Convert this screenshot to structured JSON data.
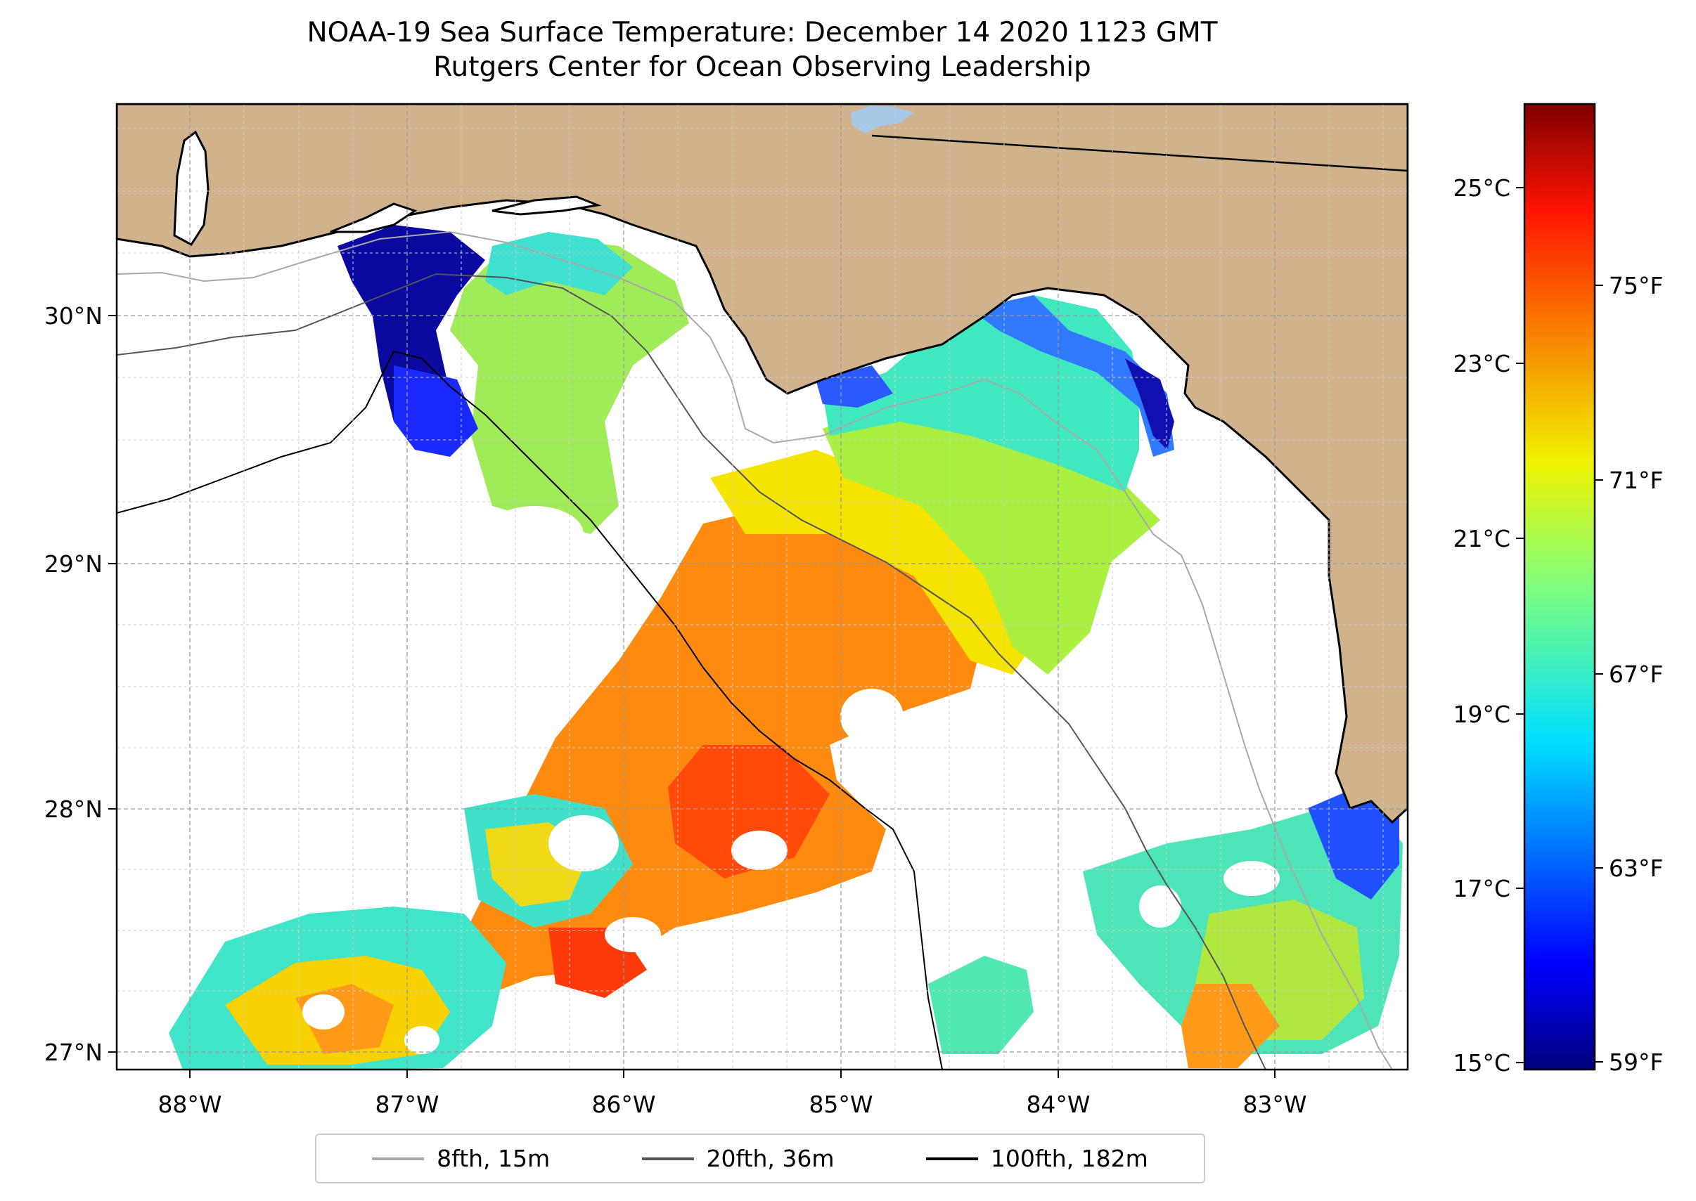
{
  "title": {
    "line1": "NOAA-19 Sea Surface Temperature: December 14 2020 1123 GMT",
    "line2": "Rutgers Center for Ocean Observing Leadership"
  },
  "map": {
    "region": "Northeastern Gulf of Mexico",
    "land_color": "#d0b28c",
    "lon_labels": [
      "88°W",
      "87°W",
      "86°W",
      "85°W",
      "84°W",
      "83°W"
    ],
    "lat_labels": [
      "27°N",
      "28°N",
      "29°N",
      "30°N"
    ]
  },
  "colorbar": {
    "celsius_labels": [
      "25°C",
      "23°C",
      "21°C",
      "19°C",
      "17°C",
      "15°C"
    ],
    "fahrenheit_labels": [
      "75°F",
      "71°F",
      "67°F",
      "63°F",
      "59°F"
    ],
    "range_c": [
      15,
      26
    ],
    "colormap": "jet"
  },
  "legend": {
    "items": [
      {
        "label": "8fth, 15m",
        "color": "#a8a8a8"
      },
      {
        "label": "20fth, 36m",
        "color": "#555555"
      },
      {
        "label": "100fth, 182m",
        "color": "#000000"
      }
    ]
  }
}
